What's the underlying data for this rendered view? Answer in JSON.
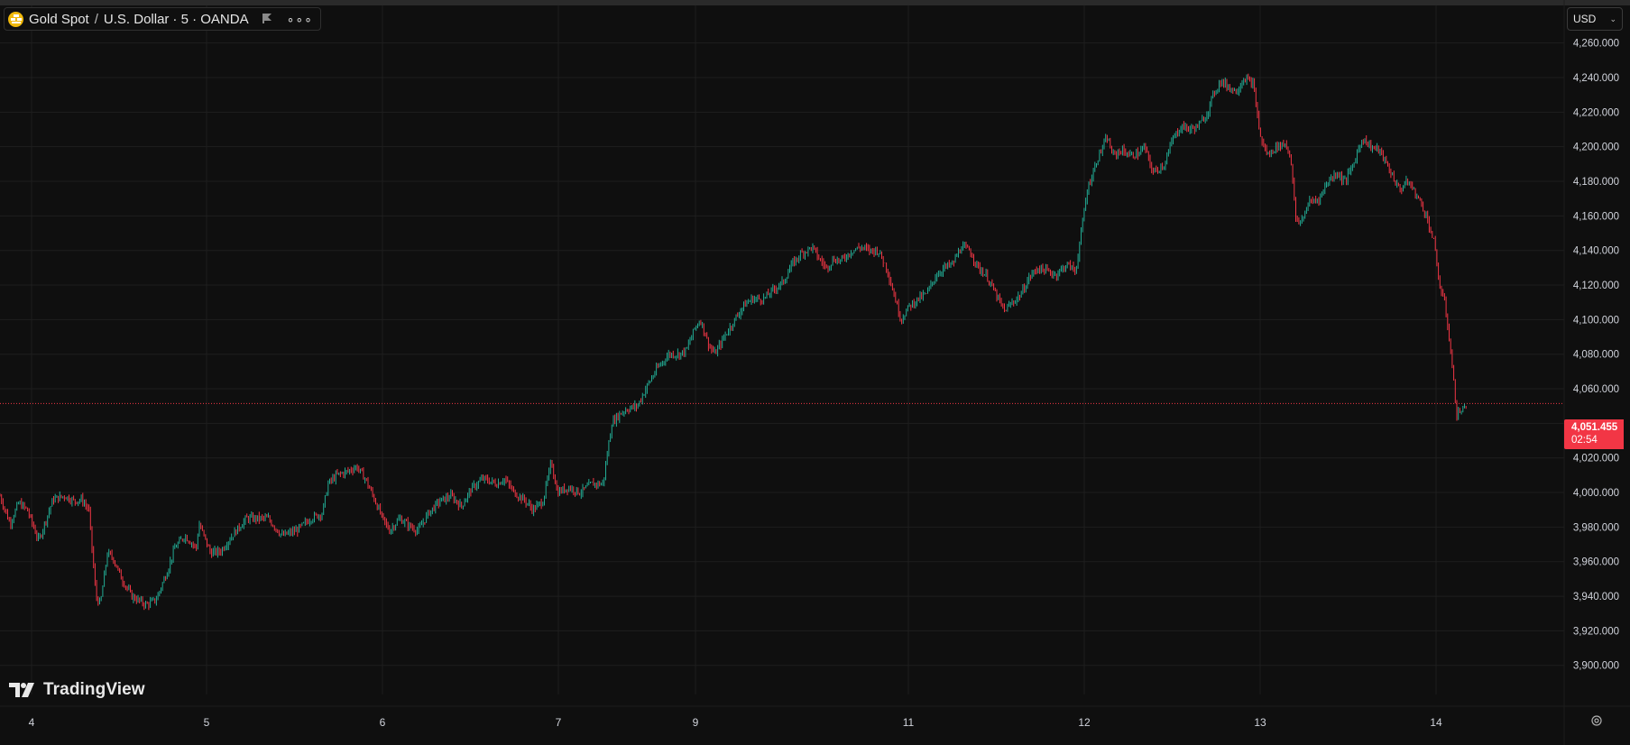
{
  "header": {
    "symbol": "Gold Spot",
    "separator": "/",
    "quote": "U.S. Dollar",
    "suffix": "· 5 · OANDA",
    "currency": "USD"
  },
  "price_label": {
    "price": "4,051.455",
    "countdown": "02:54"
  },
  "watermark": "TradingView",
  "colors": {
    "background": "#0f0f0f",
    "grid": "#1e1e1e",
    "up": "#22ab94",
    "down": "#f23645",
    "axis_text": "#d1d4dc",
    "logo": "#f0b90b"
  },
  "icons": [
    "gold-coin-icon",
    "flag-icon",
    "more-dots-icon",
    "chevron-down-icon",
    "settings-icon",
    "tradingview-logo-icon"
  ],
  "chart_data": {
    "type": "line",
    "title": "",
    "xlabel": "",
    "ylabel": "",
    "ylim": [
      3891,
      4264
    ],
    "current_price": 4051.455,
    "y_ticks": [
      {
        "value": 4260,
        "label": "4,260.000"
      },
      {
        "value": 4240,
        "label": "4,240.000"
      },
      {
        "value": 4220,
        "label": "4,220.000"
      },
      {
        "value": 4200,
        "label": "4,200.000"
      },
      {
        "value": 4180,
        "label": "4,180.000"
      },
      {
        "value": 4160,
        "label": "4,160.000"
      },
      {
        "value": 4140,
        "label": "4,140.000"
      },
      {
        "value": 4120,
        "label": "4,120.000"
      },
      {
        "value": 4100,
        "label": "4,100.000"
      },
      {
        "value": 4080,
        "label": "4,080.000"
      },
      {
        "value": 4060,
        "label": "4,060.000"
      },
      {
        "value": 4040,
        "label": "4,040.000"
      },
      {
        "value": 4020,
        "label": "4,020.000"
      },
      {
        "value": 4000,
        "label": "4,000.000"
      },
      {
        "value": 3980,
        "label": "3,980.000"
      },
      {
        "value": 3960,
        "label": "3,960.000"
      },
      {
        "value": 3940,
        "label": "3,940.000"
      },
      {
        "value": 3920,
        "label": "3,920.000"
      },
      {
        "value": 3900,
        "label": "3,900.000"
      }
    ],
    "x_ticks": [
      "4",
      "5",
      "6",
      "7",
      "9",
      "11",
      "12",
      "13",
      "14"
    ],
    "x_domain": [
      3.83,
      14.75
    ],
    "series": [
      {
        "color_up": "#22ab94",
        "color_down": "#f23645",
        "points": [
          [
            3.83,
            3998
          ],
          [
            3.9,
            3982
          ],
          [
            3.96,
            3994
          ],
          [
            4.02,
            3990
          ],
          [
            4.1,
            3972
          ],
          [
            4.2,
            3996
          ],
          [
            4.28,
            3998
          ],
          [
            4.35,
            3995
          ],
          [
            4.4,
            3996
          ],
          [
            4.45,
            3990
          ],
          [
            4.5,
            3940
          ],
          [
            4.53,
            3935
          ],
          [
            4.58,
            3965
          ],
          [
            4.62,
            3962
          ],
          [
            4.68,
            3950
          ],
          [
            4.75,
            3940
          ],
          [
            4.85,
            3935
          ],
          [
            4.92,
            3938
          ],
          [
            5.0,
            3955
          ],
          [
            5.05,
            3968
          ],
          [
            5.12,
            3975
          ],
          [
            5.2,
            3968
          ],
          [
            5.22,
            3982
          ],
          [
            5.3,
            3965
          ],
          [
            5.37,
            3966
          ],
          [
            5.45,
            3975
          ],
          [
            5.55,
            3985
          ],
          [
            5.63,
            3985
          ],
          [
            5.7,
            3985
          ],
          [
            5.75,
            3980
          ],
          [
            5.8,
            3975
          ],
          [
            5.9,
            3978
          ],
          [
            6.0,
            3985
          ],
          [
            6.08,
            3988
          ],
          [
            6.12,
            4005
          ],
          [
            6.18,
            4010
          ],
          [
            6.25,
            4012
          ],
          [
            6.32,
            4015
          ],
          [
            6.38,
            4008
          ],
          [
            6.45,
            3995
          ],
          [
            6.5,
            3985
          ],
          [
            6.55,
            3978
          ],
          [
            6.62,
            3985
          ],
          [
            6.7,
            3980
          ],
          [
            6.75,
            3978
          ],
          [
            6.82,
            3988
          ],
          [
            6.9,
            3995
          ],
          [
            6.98,
            3998
          ],
          [
            7.05,
            3992
          ],
          [
            7.12,
            4002
          ],
          [
            7.2,
            4008
          ],
          [
            7.3,
            4005
          ],
          [
            7.35,
            4008
          ],
          [
            7.42,
            4000
          ],
          [
            7.5,
            3995
          ],
          [
            7.55,
            3990
          ],
          [
            7.62,
            3995
          ],
          [
            7.68,
            4018
          ],
          [
            7.72,
            4000
          ],
          [
            7.8,
            4003
          ],
          [
            7.88,
            4000
          ],
          [
            7.96,
            4005
          ],
          [
            8.04,
            4005
          ],
          [
            8.1,
            4040
          ],
          [
            8.15,
            4045
          ],
          [
            8.2,
            4048
          ],
          [
            8.28,
            4050
          ],
          [
            8.35,
            4062
          ],
          [
            8.42,
            4072
          ],
          [
            8.5,
            4080
          ],
          [
            8.57,
            4080
          ],
          [
            8.62,
            4082
          ],
          [
            8.68,
            4095
          ],
          [
            8.72,
            4100
          ],
          [
            8.78,
            4085
          ],
          [
            8.82,
            4080
          ],
          [
            8.9,
            4092
          ],
          [
            8.96,
            4100
          ],
          [
            9.02,
            4108
          ],
          [
            9.08,
            4112
          ],
          [
            9.16,
            4112
          ],
          [
            9.24,
            4118
          ],
          [
            9.3,
            4122
          ],
          [
            9.36,
            4132
          ],
          [
            9.42,
            4138
          ],
          [
            9.5,
            4142
          ],
          [
            9.55,
            4135
          ],
          [
            9.6,
            4130
          ],
          [
            9.65,
            4135
          ],
          [
            9.7,
            4134
          ],
          [
            9.78,
            4140
          ],
          [
            9.84,
            4142
          ],
          [
            9.9,
            4140
          ],
          [
            9.96,
            4140
          ],
          [
            10.02,
            4130
          ],
          [
            10.08,
            4112
          ],
          [
            10.12,
            4100
          ],
          [
            10.18,
            4108
          ],
          [
            10.24,
            4112
          ],
          [
            10.3,
            4115
          ],
          [
            10.36,
            4125
          ],
          [
            10.42,
            4130
          ],
          [
            10.48,
            4132
          ],
          [
            10.54,
            4142
          ],
          [
            10.6,
            4140
          ],
          [
            10.66,
            4130
          ],
          [
            10.72,
            4125
          ],
          [
            10.78,
            4115
          ],
          [
            10.84,
            4105
          ],
          [
            10.9,
            4110
          ],
          [
            10.96,
            4115
          ],
          [
            11.02,
            4125
          ],
          [
            11.08,
            4130
          ],
          [
            11.14,
            4128
          ],
          [
            11.2,
            4126
          ],
          [
            11.28,
            4132
          ],
          [
            11.34,
            4128
          ],
          [
            11.42,
            4175
          ],
          [
            11.5,
            4195
          ],
          [
            11.56,
            4205
          ],
          [
            11.6,
            4195
          ],
          [
            11.66,
            4198
          ],
          [
            11.72,
            4195
          ],
          [
            11.78,
            4196
          ],
          [
            11.82,
            4200
          ],
          [
            11.88,
            4185
          ],
          [
            11.96,
            4190
          ],
          [
            12.02,
            4205
          ],
          [
            12.08,
            4212
          ],
          [
            12.14,
            4210
          ],
          [
            12.2,
            4212
          ],
          [
            12.26,
            4220
          ],
          [
            12.3,
            4230
          ],
          [
            12.35,
            4238
          ],
          [
            12.4,
            4235
          ],
          [
            12.46,
            4232
          ],
          [
            12.52,
            4240
          ],
          [
            12.58,
            4236
          ],
          [
            12.63,
            4205
          ],
          [
            12.68,
            4195
          ],
          [
            12.74,
            4200
          ],
          [
            12.8,
            4202
          ],
          [
            12.84,
            4195
          ],
          [
            12.88,
            4155
          ],
          [
            12.92,
            4158
          ],
          [
            12.97,
            4168
          ],
          [
            13.04,
            4170
          ],
          [
            13.1,
            4180
          ],
          [
            13.16,
            4185
          ],
          [
            13.22,
            4180
          ],
          [
            13.28,
            4190
          ],
          [
            13.34,
            4205
          ],
          [
            13.4,
            4200
          ],
          [
            13.46,
            4198
          ],
          [
            13.54,
            4185
          ],
          [
            13.6,
            4175
          ],
          [
            13.66,
            4180
          ],
          [
            13.72,
            4172
          ],
          [
            13.78,
            4162
          ],
          [
            13.84,
            4145
          ],
          [
            13.88,
            4120
          ],
          [
            13.92,
            4108
          ],
          [
            13.96,
            4080
          ],
          [
            14.0,
            4045
          ],
          [
            14.04,
            4048
          ],
          [
            14.07,
            4051
          ]
        ]
      }
    ]
  }
}
